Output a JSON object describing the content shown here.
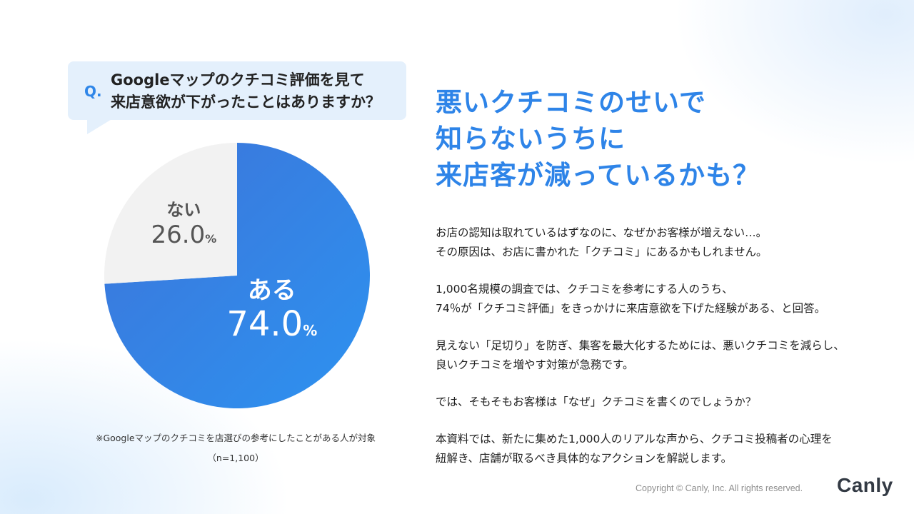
{
  "question": {
    "marker": "Q.",
    "lines": [
      "Googleマップのクチコミ評価を見て",
      "来店意欲が下がったことはありますか？"
    ]
  },
  "chart_data": {
    "type": "pie",
    "slices": [
      {
        "label": "ある",
        "value": 74.0,
        "display": "74.0",
        "unit": "%",
        "color": "#2f86ea"
      },
      {
        "label": "ない",
        "value": 26.0,
        "display": "26.0",
        "unit": "%",
        "color": "#f2f2f2"
      }
    ]
  },
  "footnote": {
    "note": "※Googleマップのクチコミを店選びの参考にしたことがある人が対象",
    "sample": "（n=1,100）"
  },
  "headline": {
    "lines": [
      "悪いクチコミのせいで",
      "知らないうちに",
      "来店客が減っているかも？"
    ]
  },
  "body": {
    "paragraphs": [
      [
        "お店の認知は取れているはずなのに、なぜかお客様が増えない…。",
        "その原因は、お店に書かれた「クチコミ」にあるかもしれません。"
      ],
      [
        "1,000名規模の調査では、クチコミを参考にする人のうち、",
        "74％が「クチコミ評価」をきっかけに来店意欲を下げた経験がある、と回答。"
      ],
      [
        "見えない「足切り」を防ぎ、集客を最大化するためには、悪いクチコミを減らし、",
        "良いクチコミを増やす対策が急務です。"
      ],
      [
        "では、そもそもお客様は「なぜ」クチコミを書くのでしょうか？"
      ],
      [
        "本資料では、新たに集めた1,000人のリアルな声から、クチコミ投稿者の心理を",
        "紐解き、店舗が取るべき具体的なアクションを解説します。"
      ]
    ]
  },
  "copyright": "Copyright © Canly, Inc. All rights reserved.",
  "brand": "Canly",
  "colors": {
    "accent": "#2e84e8",
    "bubble": "#e4f0fc"
  }
}
